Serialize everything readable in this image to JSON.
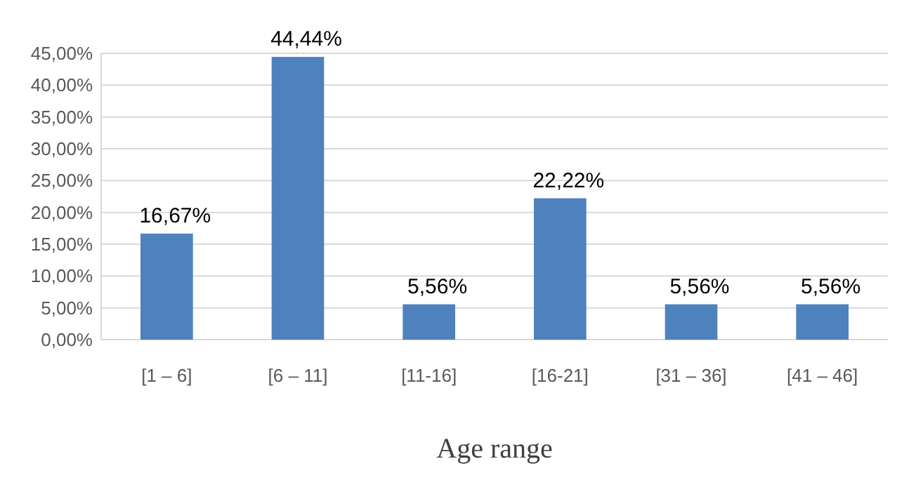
{
  "chart_data": {
    "type": "bar",
    "xlabel": "Age range",
    "categories": [
      "[1 – 6]",
      "[6 – 11]",
      "[11-16]",
      "[16-21]",
      "[31 – 36]",
      "[41 – 46]"
    ],
    "values": [
      16.67,
      44.44,
      5.56,
      22.22,
      5.56,
      5.56
    ],
    "value_labels": [
      "16,67%",
      "44,44%",
      "5,56%",
      "22,22%",
      "5,56%",
      "5,56%"
    ],
    "color": "#4f81bd",
    "ylim": [
      0,
      45
    ],
    "yticks": [
      {
        "value": 0,
        "label": "0,00%"
      },
      {
        "value": 5,
        "label": "5,00%"
      },
      {
        "value": 10,
        "label": "10,00%"
      },
      {
        "value": 15,
        "label": "15,00%"
      },
      {
        "value": 20,
        "label": "20,00%"
      },
      {
        "value": 25,
        "label": "25,00%"
      },
      {
        "value": 30,
        "label": "30,00%"
      },
      {
        "value": 35,
        "label": "35,00%"
      },
      {
        "value": 40,
        "label": "40,00%"
      },
      {
        "value": 45,
        "label": "45,00%"
      }
    ],
    "grid": "y"
  }
}
